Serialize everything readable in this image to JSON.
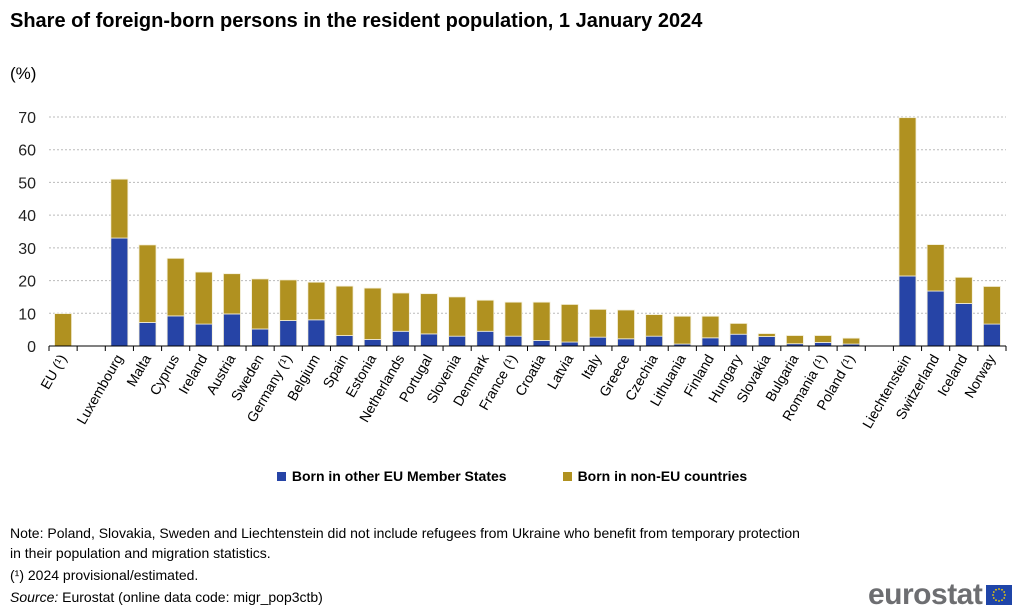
{
  "title": "Share of foreign-born persons in the resident population, 1 January 2024",
  "unit": "(%)",
  "legend": {
    "eu": "Born in other EU Member States",
    "noneu": "Born in non-EU countries"
  },
  "colors": {
    "eu": "#2644a6",
    "noneu": "#b09120",
    "grid": "#bbbbbb"
  },
  "note": "Note: Poland, Slovakia, Sweden and Liechtenstein did not include refugees from Ukraine who benefit from temporary protection in their population and migration statistics.",
  "footnote": "(¹) 2024 provisional/estimated.",
  "source_label": "Source:",
  "source_text": " Eurostat (online data code: migr_pop3ctb)",
  "logo": "eurostat",
  "chart_data": {
    "type": "bar",
    "stacked": true,
    "title": "Share of foreign-born persons in the resident population, 1 January 2024",
    "ylabel": "(%)",
    "ylim": [
      0,
      70
    ],
    "yticks": [
      0,
      10,
      20,
      30,
      40,
      50,
      60,
      70
    ],
    "grid": true,
    "legend_position": "bottom",
    "categories": [
      "EU (¹)",
      "",
      "Luxembourg",
      "Malta",
      "Cyprus",
      "Ireland",
      "Austria",
      "Sweden",
      "Germany (¹)",
      "Belgium",
      "Spain",
      "Estonia",
      "Netherlands",
      "Portugal",
      "Slovenia",
      "Denmark",
      "France (¹)",
      "Croatia",
      "Latvia",
      "Italy",
      "Greece",
      "Czechia",
      "Lithuania",
      "Finland",
      "Hungary",
      "Slovakia",
      "Bulgaria",
      "Romania (¹)",
      "Poland (¹)",
      "",
      "Liechtenstein",
      "Switzerland",
      "Iceland",
      "Norway"
    ],
    "series": [
      {
        "name": "Born in other EU Member States",
        "values": [
          null,
          null,
          33.0,
          7.2,
          9.2,
          6.7,
          9.8,
          5.2,
          7.8,
          8.0,
          3.2,
          2.0,
          4.5,
          3.7,
          3.0,
          4.5,
          3.0,
          1.7,
          1.2,
          2.7,
          2.2,
          3.0,
          0.6,
          2.5,
          3.6,
          2.9,
          0.7,
          1.1,
          0.6,
          null,
          21.4,
          16.8,
          13.0,
          6.7
        ]
      },
      {
        "name": "Born in non-EU countries",
        "values": [
          9.9,
          null,
          18.0,
          23.7,
          17.6,
          15.9,
          12.3,
          15.3,
          12.4,
          11.5,
          15.1,
          15.7,
          11.7,
          12.3,
          12.0,
          9.5,
          10.4,
          11.7,
          11.5,
          8.5,
          8.8,
          6.6,
          8.5,
          6.6,
          3.3,
          0.9,
          2.5,
          2.1,
          1.8,
          null,
          48.4,
          14.2,
          8.0,
          11.5
        ]
      }
    ]
  }
}
